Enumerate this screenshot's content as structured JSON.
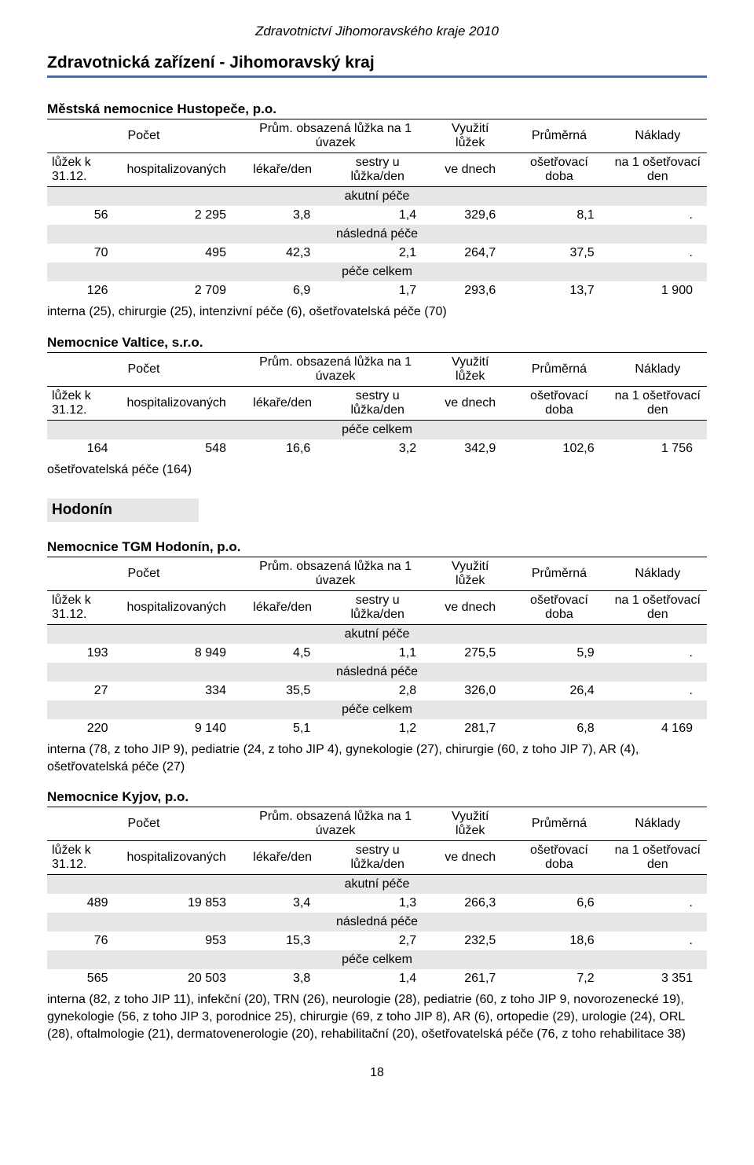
{
  "doc_header": "Zdravotnictví Jihomoravského kraje 2010",
  "section_title": "Zdravotnická zařízení - Jihomoravský kraj",
  "header_labels": {
    "pocet": "Počet",
    "prum_obs": "Prům. obsazená lůžka na 1 úvazek",
    "luzek": "lůžek k 31.12.",
    "hosp": "hospitalizovaných",
    "lekare": "lékaře/den",
    "sestry": "sestry u lůžka/den",
    "vyuz": "Využití lůžek",
    "vednech": "ve dnech",
    "prumerna": "Průměrná",
    "osetrdoba": "ošetřovací doba",
    "naklady": "Náklady",
    "na1den": "na 1 ošetřovací den"
  },
  "band_labels": {
    "akutni": "akutní péče",
    "nasledna": "následná péče",
    "celkem": "péče celkem"
  },
  "facilities": [
    {
      "name": "Městská nemocnice Hustopeče, p.o.",
      "rows": [
        {
          "band": "akutni",
          "c": [
            "56",
            "2 295",
            "3,8",
            "1,4",
            "329,6",
            "8,1",
            "."
          ]
        },
        {
          "band": "nasledna",
          "c": [
            "70",
            "495",
            "42,3",
            "2,1",
            "264,7",
            "37,5",
            "."
          ]
        },
        {
          "band": "celkem",
          "c": [
            "126",
            "2 709",
            "6,9",
            "1,7",
            "293,6",
            "13,7",
            "1 900"
          ]
        }
      ],
      "note": "interna (25), chirurgie (25), intenzivní péče (6), ošetřovatelská péče (70)"
    },
    {
      "name": "Nemocnice Valtice, s.r.o.",
      "rows": [
        {
          "band": "celkem",
          "c": [
            "164",
            "548",
            "16,6",
            "3,2",
            "342,9",
            "102,6",
            "1 756"
          ]
        }
      ],
      "note": "ošetřovatelská péče (164)"
    }
  ],
  "district": "Hodonín",
  "facilities2": [
    {
      "name": "Nemocnice TGM Hodonín, p.o.",
      "rows": [
        {
          "band": "akutni",
          "c": [
            "193",
            "8 949",
            "4,5",
            "1,1",
            "275,5",
            "5,9",
            "."
          ]
        },
        {
          "band": "nasledna",
          "c": [
            "27",
            "334",
            "35,5",
            "2,8",
            "326,0",
            "26,4",
            "."
          ]
        },
        {
          "band": "celkem",
          "c": [
            "220",
            "9 140",
            "5,1",
            "1,2",
            "281,7",
            "6,8",
            "4 169"
          ]
        }
      ],
      "note": "interna (78, z toho JIP 9), pediatrie (24, z toho JIP 4), gynekologie (27), chirurgie (60, z toho JIP 7), AR (4), ošetřovatelská péče (27)"
    },
    {
      "name": "Nemocnice Kyjov, p.o.",
      "rows": [
        {
          "band": "akutni",
          "c": [
            "489",
            "19 853",
            "3,4",
            "1,3",
            "266,3",
            "6,6",
            "."
          ]
        },
        {
          "band": "nasledna",
          "c": [
            "76",
            "953",
            "15,3",
            "2,7",
            "232,5",
            "18,6",
            "."
          ]
        },
        {
          "band": "celkem",
          "c": [
            "565",
            "20 503",
            "3,8",
            "1,4",
            "261,7",
            "7,2",
            "3 351"
          ]
        }
      ],
      "note": "interna (82, z toho JIP 11), infekční (20), TRN (26), neurologie (28), pediatrie (60, z toho JIP 9, novorozenecké 19), gynekologie (56, z toho JIP 3, porodnice 25), chirurgie (69, z toho JIP 8), AR (6), ortopedie (29), urologie (24), ORL (28), oftalmologie (21), dermatovenerologie (20), rehabilitační (20), ošetřovatelská péče (76, z toho rehabilitace 38)"
    }
  ],
  "page_number": "18",
  "colors": {
    "rule": "#4a6fa5",
    "band_bg": "#e6e6e6",
    "text": "#000000",
    "bg": "#ffffff"
  }
}
